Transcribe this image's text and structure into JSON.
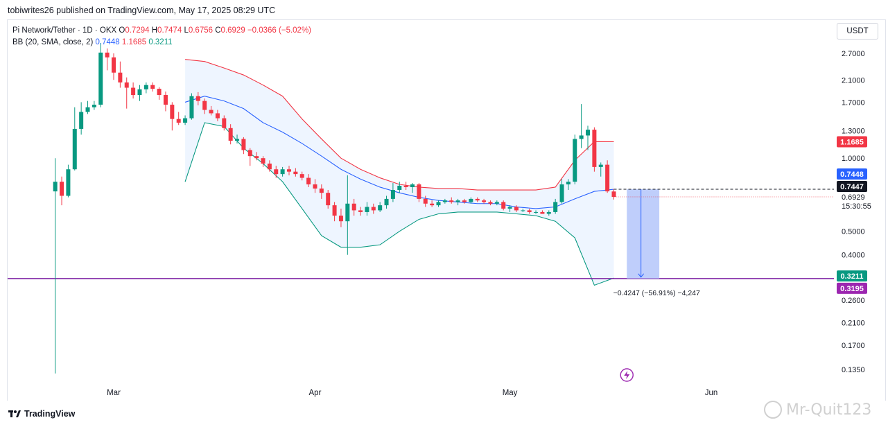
{
  "header": {
    "publisher_line": "tobiwrites26 published on TradingView.com, May 17, 2025 08:29 UTC"
  },
  "legend": {
    "symbol": "Pi Network/Tether · 1D · OKX",
    "open_label": "O",
    "open": "0.7294",
    "high_label": "H",
    "high": "0.7474",
    "low_label": "L",
    "low": "0.6756",
    "close_label": "C",
    "close": "0.6929",
    "change": "−0.0366 (−5.02%)",
    "bb_label": "BB (20, SMA, close, 2)",
    "bb_basis": "0.7448",
    "bb_upper": "1.1685",
    "bb_lower": "0.3211"
  },
  "toolbar": {
    "currency": "USDT"
  },
  "footer": {
    "brand": "TradingView",
    "watermark": "Mr-Quit123"
  },
  "colors": {
    "up": "#089981",
    "down": "#f23645",
    "basis": "#2962ff",
    "upper": "#f23645",
    "lower": "#089981",
    "band_fill": "#eef5ff",
    "support": "#7b1fa2",
    "projection": "#a9bdfa"
  },
  "chart_data": {
    "type": "candlestick",
    "scale": "log",
    "y_ticks": [
      "2.7000",
      "2.1000",
      "1.7000",
      "1.3000",
      "1.0000",
      "0.5000",
      "0.4000",
      "0.2600",
      "0.2100",
      "0.1700",
      "0.1350"
    ],
    "x_ticks": [
      {
        "label": "Mar",
        "date": "2025-03-01"
      },
      {
        "label": "Apr",
        "date": "2025-04-01"
      },
      {
        "label": "May",
        "date": "2025-05-01"
      },
      {
        "label": "Jun",
        "date": "2025-06-01"
      }
    ],
    "price_tags": [
      {
        "label": "1.1685",
        "value": 1.1685,
        "color": "#f23645"
      },
      {
        "label": "0.7448",
        "value": 0.7448,
        "color": "#2962ff"
      },
      {
        "label": "0.7447",
        "value": 0.7447,
        "color": "#131722"
      },
      {
        "label": "0.3211",
        "value": 0.3211,
        "color": "#089981"
      },
      {
        "label": "0.3195",
        "value": 0.3195,
        "color": "#9c27b0"
      }
    ],
    "last_price_label": "0.6929",
    "countdown": "15:30:55",
    "support_level": 0.3195,
    "projection": {
      "from": 0.7447,
      "to": 0.3195,
      "label": "−0.4247 (−56.91%) −4,247"
    },
    "candles": [
      {
        "date": "2025-02-20",
        "o": 0.73,
        "h": 1.0,
        "l": 0.13,
        "c": 0.8
      },
      {
        "date": "2025-02-21",
        "o": 0.8,
        "h": 0.84,
        "l": 0.64,
        "c": 0.7
      },
      {
        "date": "2025-02-22",
        "o": 0.7,
        "h": 0.94,
        "l": 0.69,
        "c": 0.9
      },
      {
        "date": "2025-02-23",
        "o": 0.9,
        "h": 1.62,
        "l": 0.89,
        "c": 1.32
      },
      {
        "date": "2025-02-24",
        "o": 1.32,
        "h": 1.7,
        "l": 1.25,
        "c": 1.55
      },
      {
        "date": "2025-02-25",
        "o": 1.55,
        "h": 1.72,
        "l": 1.52,
        "c": 1.62
      },
      {
        "date": "2025-02-26",
        "o": 1.62,
        "h": 1.72,
        "l": 1.58,
        "c": 1.66
      },
      {
        "date": "2025-02-27",
        "o": 1.66,
        "h": 2.98,
        "l": 1.62,
        "c": 2.72
      },
      {
        "date": "2025-02-28",
        "o": 2.72,
        "h": 2.83,
        "l": 2.3,
        "c": 2.6
      },
      {
        "date": "2025-03-01",
        "o": 2.6,
        "h": 2.7,
        "l": 2.1,
        "c": 2.25
      },
      {
        "date": "2025-03-02",
        "o": 2.25,
        "h": 2.5,
        "l": 1.95,
        "c": 2.05
      },
      {
        "date": "2025-03-03",
        "o": 2.05,
        "h": 2.15,
        "l": 1.6,
        "c": 1.95
      },
      {
        "date": "2025-03-04",
        "o": 1.95,
        "h": 2.05,
        "l": 1.76,
        "c": 1.82
      },
      {
        "date": "2025-03-05",
        "o": 1.82,
        "h": 2.0,
        "l": 1.72,
        "c": 1.92
      },
      {
        "date": "2025-03-06",
        "o": 1.92,
        "h": 2.05,
        "l": 1.85,
        "c": 2.0
      },
      {
        "date": "2025-03-07",
        "o": 2.0,
        "h": 2.05,
        "l": 1.88,
        "c": 1.93
      },
      {
        "date": "2025-03-08",
        "o": 1.93,
        "h": 1.96,
        "l": 1.74,
        "c": 1.82
      },
      {
        "date": "2025-03-09",
        "o": 1.82,
        "h": 1.88,
        "l": 1.56,
        "c": 1.66
      },
      {
        "date": "2025-03-10",
        "o": 1.66,
        "h": 1.7,
        "l": 1.3,
        "c": 1.45
      },
      {
        "date": "2025-03-11",
        "o": 1.45,
        "h": 1.55,
        "l": 1.37,
        "c": 1.4
      },
      {
        "date": "2025-03-12",
        "o": 1.4,
        "h": 1.5,
        "l": 1.37,
        "c": 1.46
      },
      {
        "date": "2025-03-13",
        "o": 1.46,
        "h": 1.85,
        "l": 1.44,
        "c": 1.8
      },
      {
        "date": "2025-03-14",
        "o": 1.8,
        "h": 1.87,
        "l": 1.65,
        "c": 1.72
      },
      {
        "date": "2025-03-15",
        "o": 1.72,
        "h": 1.76,
        "l": 1.52,
        "c": 1.58
      },
      {
        "date": "2025-03-16",
        "o": 1.58,
        "h": 1.64,
        "l": 1.5,
        "c": 1.53
      },
      {
        "date": "2025-03-17",
        "o": 1.53,
        "h": 1.58,
        "l": 1.42,
        "c": 1.46
      },
      {
        "date": "2025-03-18",
        "o": 1.46,
        "h": 1.5,
        "l": 1.3,
        "c": 1.33
      },
      {
        "date": "2025-03-19",
        "o": 1.33,
        "h": 1.38,
        "l": 1.14,
        "c": 1.18
      },
      {
        "date": "2025-03-20",
        "o": 1.18,
        "h": 1.25,
        "l": 1.15,
        "c": 1.2
      },
      {
        "date": "2025-03-21",
        "o": 1.2,
        "h": 1.22,
        "l": 1.04,
        "c": 1.08
      },
      {
        "date": "2025-03-22",
        "o": 1.08,
        "h": 1.1,
        "l": 0.93,
        "c": 1.02
      },
      {
        "date": "2025-03-23",
        "o": 1.02,
        "h": 1.06,
        "l": 0.98,
        "c": 1.0
      },
      {
        "date": "2025-03-24",
        "o": 1.0,
        "h": 1.02,
        "l": 0.92,
        "c": 0.95
      },
      {
        "date": "2025-03-25",
        "o": 0.95,
        "h": 0.98,
        "l": 0.88,
        "c": 0.9
      },
      {
        "date": "2025-03-26",
        "o": 0.9,
        "h": 0.93,
        "l": 0.83,
        "c": 0.86
      },
      {
        "date": "2025-03-27",
        "o": 0.86,
        "h": 0.92,
        "l": 0.84,
        "c": 0.9
      },
      {
        "date": "2025-03-28",
        "o": 0.9,
        "h": 0.93,
        "l": 0.85,
        "c": 0.88
      },
      {
        "date": "2025-03-29",
        "o": 0.88,
        "h": 0.91,
        "l": 0.84,
        "c": 0.86
      },
      {
        "date": "2025-03-30",
        "o": 0.86,
        "h": 0.88,
        "l": 0.81,
        "c": 0.83
      },
      {
        "date": "2025-03-31",
        "o": 0.83,
        "h": 0.86,
        "l": 0.76,
        "c": 0.78
      },
      {
        "date": "2025-04-01",
        "o": 0.78,
        "h": 0.82,
        "l": 0.72,
        "c": 0.75
      },
      {
        "date": "2025-04-02",
        "o": 0.75,
        "h": 0.78,
        "l": 0.68,
        "c": 0.72
      },
      {
        "date": "2025-04-03",
        "o": 0.72,
        "h": 0.74,
        "l": 0.62,
        "c": 0.64
      },
      {
        "date": "2025-04-04",
        "o": 0.64,
        "h": 0.66,
        "l": 0.55,
        "c": 0.58
      },
      {
        "date": "2025-04-05",
        "o": 0.58,
        "h": 0.62,
        "l": 0.52,
        "c": 0.55
      },
      {
        "date": "2025-04-06",
        "o": 0.55,
        "h": 0.85,
        "l": 0.4,
        "c": 0.65
      },
      {
        "date": "2025-04-07",
        "o": 0.65,
        "h": 0.68,
        "l": 0.58,
        "c": 0.61
      },
      {
        "date": "2025-04-08",
        "o": 0.61,
        "h": 0.63,
        "l": 0.58,
        "c": 0.6
      },
      {
        "date": "2025-04-09",
        "o": 0.6,
        "h": 0.66,
        "l": 0.58,
        "c": 0.63
      },
      {
        "date": "2025-04-10",
        "o": 0.63,
        "h": 0.65,
        "l": 0.59,
        "c": 0.61
      },
      {
        "date": "2025-04-11",
        "o": 0.61,
        "h": 0.66,
        "l": 0.6,
        "c": 0.64
      },
      {
        "date": "2025-04-12",
        "o": 0.64,
        "h": 0.7,
        "l": 0.62,
        "c": 0.68
      },
      {
        "date": "2025-04-13",
        "o": 0.68,
        "h": 0.79,
        "l": 0.66,
        "c": 0.74
      },
      {
        "date": "2025-04-14",
        "o": 0.74,
        "h": 0.8,
        "l": 0.72,
        "c": 0.77
      },
      {
        "date": "2025-04-15",
        "o": 0.77,
        "h": 0.8,
        "l": 0.74,
        "c": 0.76
      },
      {
        "date": "2025-04-16",
        "o": 0.76,
        "h": 0.79,
        "l": 0.72,
        "c": 0.78
      },
      {
        "date": "2025-04-17",
        "o": 0.78,
        "h": 0.79,
        "l": 0.66,
        "c": 0.68
      },
      {
        "date": "2025-04-18",
        "o": 0.68,
        "h": 0.7,
        "l": 0.63,
        "c": 0.65
      },
      {
        "date": "2025-04-19",
        "o": 0.65,
        "h": 0.67,
        "l": 0.63,
        "c": 0.64
      },
      {
        "date": "2025-04-20",
        "o": 0.64,
        "h": 0.67,
        "l": 0.63,
        "c": 0.66
      },
      {
        "date": "2025-04-21",
        "o": 0.66,
        "h": 0.68,
        "l": 0.65,
        "c": 0.67
      },
      {
        "date": "2025-04-22",
        "o": 0.67,
        "h": 0.69,
        "l": 0.65,
        "c": 0.66
      },
      {
        "date": "2025-04-23",
        "o": 0.66,
        "h": 0.68,
        "l": 0.64,
        "c": 0.67
      },
      {
        "date": "2025-04-24",
        "o": 0.67,
        "h": 0.68,
        "l": 0.65,
        "c": 0.66
      },
      {
        "date": "2025-04-25",
        "o": 0.66,
        "h": 0.69,
        "l": 0.65,
        "c": 0.68
      },
      {
        "date": "2025-04-26",
        "o": 0.68,
        "h": 0.69,
        "l": 0.66,
        "c": 0.67
      },
      {
        "date": "2025-04-27",
        "o": 0.67,
        "h": 0.68,
        "l": 0.65,
        "c": 0.66
      },
      {
        "date": "2025-04-28",
        "o": 0.66,
        "h": 0.67,
        "l": 0.64,
        "c": 0.65
      },
      {
        "date": "2025-04-29",
        "o": 0.65,
        "h": 0.67,
        "l": 0.64,
        "c": 0.66
      },
      {
        "date": "2025-04-30",
        "o": 0.66,
        "h": 0.67,
        "l": 0.61,
        "c": 0.62
      },
      {
        "date": "2025-05-01",
        "o": 0.62,
        "h": 0.64,
        "l": 0.6,
        "c": 0.63
      },
      {
        "date": "2025-05-02",
        "o": 0.63,
        "h": 0.64,
        "l": 0.6,
        "c": 0.61
      },
      {
        "date": "2025-05-03",
        "o": 0.61,
        "h": 0.62,
        "l": 0.6,
        "c": 0.61
      },
      {
        "date": "2025-05-04",
        "o": 0.61,
        "h": 0.62,
        "l": 0.59,
        "c": 0.6
      },
      {
        "date": "2025-05-05",
        "o": 0.6,
        "h": 0.61,
        "l": 0.59,
        "c": 0.6
      },
      {
        "date": "2025-05-06",
        "o": 0.6,
        "h": 0.61,
        "l": 0.59,
        "c": 0.59
      },
      {
        "date": "2025-05-07",
        "o": 0.59,
        "h": 0.61,
        "l": 0.58,
        "c": 0.6
      },
      {
        "date": "2025-05-08",
        "o": 0.6,
        "h": 0.68,
        "l": 0.59,
        "c": 0.66
      },
      {
        "date": "2025-05-09",
        "o": 0.66,
        "h": 0.82,
        "l": 0.65,
        "c": 0.78
      },
      {
        "date": "2025-05-10",
        "o": 0.78,
        "h": 0.82,
        "l": 0.74,
        "c": 0.8
      },
      {
        "date": "2025-05-11",
        "o": 0.8,
        "h": 1.25,
        "l": 0.78,
        "c": 1.2
      },
      {
        "date": "2025-05-12",
        "o": 1.2,
        "h": 1.67,
        "l": 1.1,
        "c": 1.24
      },
      {
        "date": "2025-05-13",
        "o": 1.24,
        "h": 1.36,
        "l": 1.08,
        "c": 1.31
      },
      {
        "date": "2025-05-14",
        "o": 1.31,
        "h": 1.34,
        "l": 0.88,
        "c": 0.92
      },
      {
        "date": "2025-05-15",
        "o": 0.92,
        "h": 0.96,
        "l": 0.84,
        "c": 0.94
      },
      {
        "date": "2025-05-16",
        "o": 0.94,
        "h": 0.98,
        "l": 0.72,
        "c": 0.73
      },
      {
        "date": "2025-05-17",
        "o": 0.7294,
        "h": 0.7474,
        "l": 0.6756,
        "c": 0.6929
      }
    ],
    "bollinger": {
      "dates": [
        "2025-03-12",
        "2025-03-15",
        "2025-03-18",
        "2025-03-21",
        "2025-03-24",
        "2025-03-27",
        "2025-03-30",
        "2025-04-02",
        "2025-04-05",
        "2025-04-08",
        "2025-04-11",
        "2025-04-14",
        "2025-04-17",
        "2025-04-20",
        "2025-04-23",
        "2025-04-26",
        "2025-04-29",
        "2025-05-02",
        "2025-05-05",
        "2025-05-08",
        "2025-05-11",
        "2025-05-14",
        "2025-05-17"
      ],
      "upper": [
        2.55,
        2.5,
        2.35,
        2.2,
        2.0,
        1.8,
        1.45,
        1.2,
        1.0,
        0.9,
        0.83,
        0.78,
        0.76,
        0.75,
        0.75,
        0.74,
        0.74,
        0.74,
        0.74,
        0.76,
        0.98,
        1.17,
        1.1685
      ],
      "basis": [
        1.7,
        1.8,
        1.72,
        1.6,
        1.4,
        1.28,
        1.15,
        1.02,
        0.9,
        0.82,
        0.76,
        0.72,
        0.69,
        0.67,
        0.66,
        0.65,
        0.65,
        0.63,
        0.62,
        0.63,
        0.68,
        0.73,
        0.7448
      ],
      "lower": [
        0.8,
        1.4,
        1.35,
        1.1,
        0.95,
        0.8,
        0.62,
        0.48,
        0.43,
        0.43,
        0.44,
        0.5,
        0.56,
        0.59,
        0.6,
        0.6,
        0.6,
        0.59,
        0.58,
        0.55,
        0.47,
        0.3,
        0.3211
      ]
    }
  }
}
